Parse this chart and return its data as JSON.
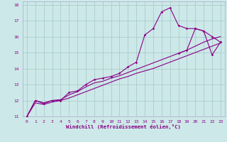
{
  "xlabel": "Windchill (Refroidissement éolien,°C)",
  "bg_color": "#cde8e8",
  "line_color": "#880088",
  "grid_color": "#aacccc",
  "spine_color": "#aaaacc",
  "x_ticks": [
    0,
    1,
    2,
    3,
    4,
    5,
    6,
    7,
    8,
    9,
    10,
    11,
    12,
    13,
    14,
    15,
    16,
    17,
    18,
    19,
    20,
    21,
    22,
    23
  ],
  "y_ticks": [
    11,
    12,
    13,
    14,
    15,
    16,
    17,
    18
  ],
  "xlim": [
    -0.5,
    23.5
  ],
  "ylim": [
    11,
    18.2
  ],
  "line1_x": [
    0,
    1,
    2,
    3,
    4,
    5,
    6,
    7,
    8,
    9,
    10,
    11,
    12,
    13,
    14,
    15,
    16,
    17,
    18,
    19,
    20,
    21,
    22,
    23
  ],
  "line1_y": [
    11.0,
    12.0,
    11.8,
    12.0,
    12.0,
    12.5,
    12.6,
    13.0,
    13.3,
    13.4,
    13.5,
    13.7,
    14.1,
    14.4,
    16.1,
    16.5,
    17.55,
    17.8,
    16.7,
    16.5,
    16.5,
    16.35,
    16.0,
    15.65
  ],
  "line2_x": [
    0,
    1,
    2,
    3,
    4,
    5,
    6,
    7,
    8,
    9,
    10,
    11,
    12,
    13,
    14,
    15,
    16,
    17,
    18,
    19,
    20,
    21,
    22,
    23
  ],
  "line2_y": [
    11.0,
    12.0,
    11.85,
    12.0,
    12.05,
    12.35,
    12.55,
    12.85,
    13.1,
    13.2,
    13.4,
    13.55,
    13.75,
    13.95,
    14.15,
    14.35,
    14.55,
    14.75,
    14.95,
    15.15,
    15.4,
    15.65,
    15.85,
    16.0
  ],
  "line3_x": [
    0,
    1,
    2,
    3,
    4,
    5,
    6,
    7,
    8,
    9,
    10,
    11,
    12,
    13,
    14,
    15,
    16,
    17,
    18,
    19,
    20,
    21,
    22,
    23
  ],
  "line3_y": [
    11.0,
    11.85,
    11.75,
    11.9,
    12.0,
    12.15,
    12.35,
    12.55,
    12.75,
    12.95,
    13.15,
    13.35,
    13.5,
    13.7,
    13.85,
    14.0,
    14.2,
    14.4,
    14.6,
    14.8,
    15.0,
    15.2,
    15.4,
    15.6
  ],
  "line4_x": [
    18,
    19,
    20,
    21,
    22,
    23
  ],
  "line4_y": [
    14.95,
    15.15,
    16.5,
    16.35,
    14.85,
    15.65
  ]
}
